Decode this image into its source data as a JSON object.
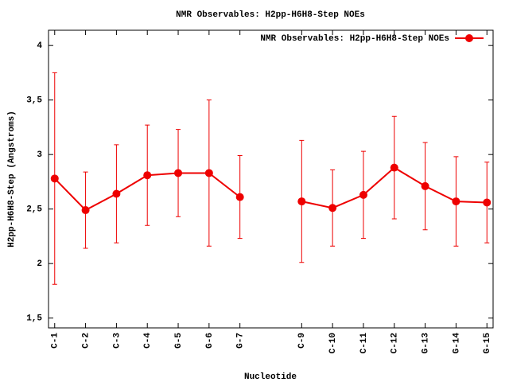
{
  "chart_data": {
    "type": "line",
    "title": "NMR Observables: H2pp-H6H8-Step NOEs",
    "xlabel": "Nucleotide",
    "ylabel": "H2pp-H6H8-Step (Angstroms)",
    "categories": [
      "C-1",
      "C-2",
      "C-3",
      "C-4",
      "G-5",
      "G-6",
      "G-7",
      null,
      "C-9",
      "C-10",
      "C-11",
      "C-12",
      "G-13",
      "G-14",
      "G-15"
    ],
    "series": [
      {
        "name": "NMR Observables: H2pp-H6H8-Step NOEs",
        "color": "#ee0000",
        "values": [
          2.78,
          2.49,
          2.64,
          2.81,
          2.83,
          2.83,
          2.61,
          null,
          2.57,
          2.51,
          2.63,
          2.88,
          2.71,
          2.57,
          2.56
        ],
        "errors": [
          0.97,
          0.35,
          0.45,
          0.46,
          0.4,
          0.67,
          0.38,
          null,
          0.56,
          0.35,
          0.4,
          0.47,
          0.4,
          0.41,
          0.37
        ]
      }
    ],
    "ylim": [
      1.41,
      4.14
    ],
    "yticks": [
      {
        "value": 1.5,
        "label": "1,5"
      },
      2,
      {
        "value": 2.5,
        "label": "2,5"
      },
      3,
      {
        "value": 3.5,
        "label": "3,5"
      },
      4
    ],
    "legend": "top-right"
  }
}
